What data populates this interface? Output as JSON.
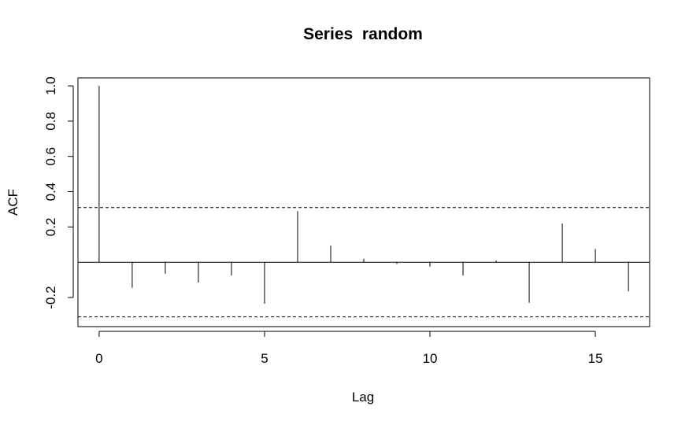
{
  "chart_data": {
    "type": "bar",
    "title": "Series  random",
    "xlabel": "Lag",
    "ylabel": "ACF",
    "xlim": [
      -0.64,
      16.64
    ],
    "ylim": [
      -0.365,
      1.045
    ],
    "x_ticks": [
      0,
      5,
      10,
      15
    ],
    "x_tick_labels": [
      "0",
      "5",
      "10",
      "15"
    ],
    "y_ticks": [
      -0.2,
      0.2,
      0.4,
      0.6,
      0.8,
      1.0
    ],
    "y_tick_labels": [
      "-0.2",
      "0.2",
      "0.4",
      "0.6",
      "0.8",
      "1.0"
    ],
    "lags": [
      0,
      1,
      2,
      3,
      4,
      5,
      6,
      7,
      8,
      9,
      10,
      11,
      12,
      13,
      14,
      15,
      16
    ],
    "acf": [
      1.0,
      -0.145,
      -0.065,
      -0.115,
      -0.075,
      -0.235,
      0.29,
      0.095,
      0.02,
      -0.01,
      -0.025,
      -0.075,
      0.01,
      -0.23,
      0.22,
      0.075,
      -0.165
    ],
    "confidence_bounds": [
      0.31,
      -0.31
    ],
    "zero_line": 0,
    "grid": false,
    "legend": "none",
    "line_color": "#000000"
  }
}
